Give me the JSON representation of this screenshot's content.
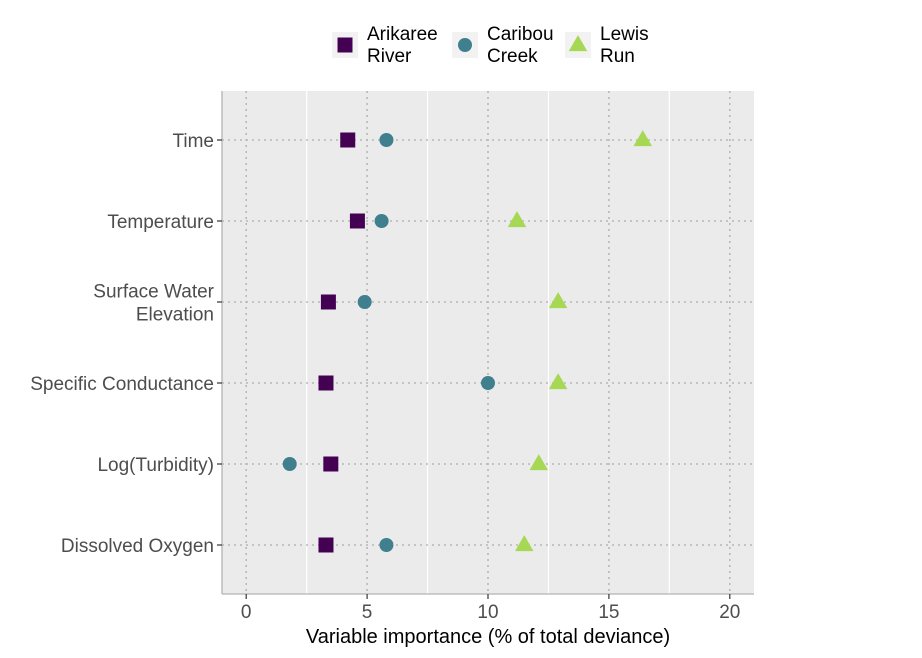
{
  "chart_data": {
    "type": "scatter",
    "title": "",
    "xlabel": "Variable importance (% of total deviance)",
    "ylabel": "",
    "xlim": [
      -1,
      21
    ],
    "xticks": [
      0,
      5,
      10,
      15,
      20
    ],
    "grid": true,
    "legend_position": "top",
    "categories": [
      [
        "Time"
      ],
      [
        "Temperature"
      ],
      [
        "Surface Water",
        "Elevation"
      ],
      [
        "Specific Conductance"
      ],
      [
        "Log(Turbidity)"
      ],
      [
        "Dissolved Oxygen"
      ]
    ],
    "series": [
      {
        "name": [
          "Arikaree",
          "River"
        ],
        "marker": "square",
        "color": "#440154",
        "values": [
          4.2,
          4.6,
          3.4,
          3.3,
          3.5,
          3.3
        ]
      },
      {
        "name": [
          "Caribou",
          "Creek"
        ],
        "marker": "circle",
        "color": "#3f7f8e",
        "values": [
          5.8,
          5.6,
          4.9,
          10.0,
          1.8,
          5.8
        ]
      },
      {
        "name": [
          "Lewis",
          "Run"
        ],
        "marker": "triangle",
        "color": "#a6d854",
        "values": [
          16.4,
          11.2,
          12.9,
          12.9,
          12.1,
          11.5
        ]
      }
    ],
    "colors": {
      "panel": "#ebebeb",
      "grid_major": "#ffffff",
      "grid_minor_dotted": "#b8b8b8",
      "axis_line": "#b3b3b3"
    }
  }
}
